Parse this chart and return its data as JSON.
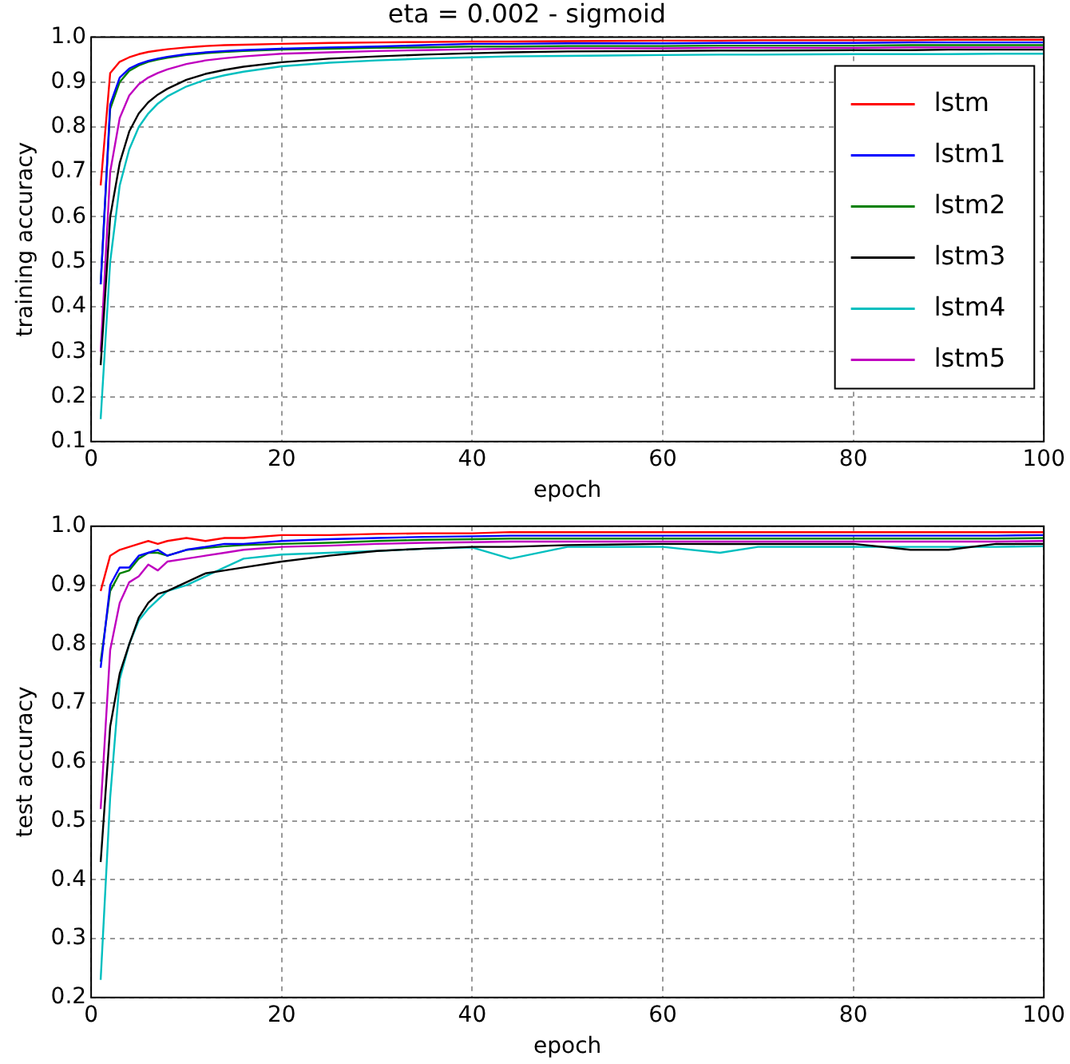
{
  "chart_data": [
    {
      "type": "line",
      "title": "eta = 0.002 - sigmoid",
      "xlabel": "epoch",
      "ylabel": "training accuracy",
      "x": [
        1,
        2,
        3,
        4,
        5,
        6,
        7,
        8,
        10,
        12,
        14,
        16,
        20,
        25,
        30,
        35,
        40,
        44,
        50,
        60,
        66,
        70,
        80,
        86,
        90,
        95,
        100
      ],
      "xlim": [
        0,
        100
      ],
      "xticks": [
        0,
        20,
        40,
        60,
        80,
        100
      ],
      "ylim": [
        0.1,
        1.0
      ],
      "yticks": [
        0.1,
        0.2,
        0.3,
        0.4,
        0.5,
        0.6,
        0.7,
        0.8,
        0.9,
        {
          "value": 1.0,
          "label": "1.0"
        }
      ],
      "grid": true,
      "legend": "top right",
      "marker": "none",
      "line_style": "solid",
      "series": [
        {
          "name": "lstm",
          "color": "#ff0000",
          "values": [
            0.67,
            0.92,
            0.945,
            0.955,
            0.962,
            0.967,
            0.97,
            0.973,
            0.977,
            0.98,
            0.982,
            0.983,
            0.985,
            0.987,
            0.988,
            0.989,
            0.99,
            0.99,
            0.991,
            0.992,
            0.992,
            0.993,
            0.993,
            0.993,
            0.994,
            0.994,
            0.994
          ]
        },
        {
          "name": "lstm1",
          "color": "#0000ff",
          "values": [
            0.45,
            0.85,
            0.91,
            0.93,
            0.94,
            0.947,
            0.952,
            0.956,
            0.962,
            0.966,
            0.969,
            0.971,
            0.974,
            0.977,
            0.979,
            0.982,
            0.985,
            0.985,
            0.986,
            0.986,
            0.987,
            0.987,
            0.987,
            0.988,
            0.988,
            0.988,
            0.988
          ]
        },
        {
          "name": "lstm2",
          "color": "#008000",
          "values": [
            0.45,
            0.84,
            0.9,
            0.925,
            0.937,
            0.945,
            0.95,
            0.954,
            0.96,
            0.964,
            0.967,
            0.969,
            0.972,
            0.974,
            0.976,
            0.977,
            0.979,
            0.979,
            0.98,
            0.98,
            0.981,
            0.981,
            0.981,
            0.982,
            0.982,
            0.982,
            0.982
          ]
        },
        {
          "name": "lstm3",
          "color": "#000000",
          "values": [
            0.27,
            0.6,
            0.72,
            0.79,
            0.83,
            0.855,
            0.872,
            0.885,
            0.905,
            0.918,
            0.927,
            0.934,
            0.944,
            0.952,
            0.957,
            0.961,
            0.964,
            0.966,
            0.968,
            0.969,
            0.97,
            0.97,
            0.971,
            0.971,
            0.972,
            0.972,
            0.972
          ]
        },
        {
          "name": "lstm4",
          "color": "#00bfbf",
          "values": [
            0.15,
            0.5,
            0.67,
            0.75,
            0.8,
            0.83,
            0.852,
            0.868,
            0.89,
            0.905,
            0.915,
            0.923,
            0.935,
            0.943,
            0.948,
            0.952,
            0.955,
            0.957,
            0.958,
            0.96,
            0.961,
            0.961,
            0.962,
            0.962,
            0.962,
            0.963,
            0.963
          ]
        },
        {
          "name": "lstm5",
          "color": "#bf00bf",
          "values": [
            0.3,
            0.7,
            0.82,
            0.87,
            0.895,
            0.91,
            0.92,
            0.928,
            0.94,
            0.948,
            0.953,
            0.957,
            0.963,
            0.966,
            0.969,
            0.971,
            0.973,
            0.974,
            0.975,
            0.975,
            0.976,
            0.976,
            0.976,
            0.977,
            0.977,
            0.977,
            0.977
          ]
        }
      ]
    },
    {
      "type": "line",
      "xlabel": "epoch",
      "ylabel": "test accuracy",
      "x": [
        1,
        2,
        3,
        4,
        5,
        6,
        7,
        8,
        10,
        12,
        14,
        16,
        20,
        25,
        30,
        35,
        40,
        44,
        50,
        60,
        66,
        70,
        80,
        86,
        90,
        95,
        100
      ],
      "xlim": [
        0,
        100
      ],
      "xticks": [
        0,
        20,
        40,
        60,
        80,
        100
      ],
      "ylim": [
        0.2,
        1.0
      ],
      "yticks": [
        0.2,
        0.3,
        0.4,
        0.5,
        0.6,
        0.7,
        0.8,
        0.9,
        {
          "value": 1.0,
          "label": "1.0"
        }
      ],
      "grid": true,
      "marker": "none",
      "line_style": "solid",
      "series": [
        {
          "color": "#ff0000",
          "values": [
            0.89,
            0.95,
            0.96,
            0.965,
            0.97,
            0.975,
            0.97,
            0.975,
            0.98,
            0.975,
            0.98,
            0.98,
            0.985,
            0.985,
            0.987,
            0.988,
            0.988,
            0.99,
            0.99,
            0.99,
            0.99,
            0.99,
            0.99,
            0.99,
            0.99,
            0.99,
            0.99
          ]
        },
        {
          "color": "#0000ff",
          "values": [
            0.76,
            0.9,
            0.93,
            0.93,
            0.95,
            0.955,
            0.96,
            0.95,
            0.96,
            0.965,
            0.97,
            0.97,
            0.975,
            0.978,
            0.98,
            0.982,
            0.983,
            0.984,
            0.984,
            0.984,
            0.984,
            0.984,
            0.984,
            0.984,
            0.984,
            0.984,
            0.985
          ]
        },
        {
          "color": "#008000",
          "values": [
            0.77,
            0.89,
            0.92,
            0.925,
            0.945,
            0.955,
            0.955,
            0.95,
            0.96,
            0.963,
            0.966,
            0.968,
            0.97,
            0.972,
            0.975,
            0.977,
            0.978,
            0.979,
            0.979,
            0.979,
            0.979,
            0.979,
            0.979,
            0.979,
            0.979,
            0.979,
            0.98
          ]
        },
        {
          "color": "#000000",
          "values": [
            0.43,
            0.66,
            0.75,
            0.8,
            0.845,
            0.87,
            0.885,
            0.89,
            0.905,
            0.92,
            0.925,
            0.93,
            0.94,
            0.95,
            0.958,
            0.962,
            0.965,
            0.965,
            0.968,
            0.97,
            0.97,
            0.97,
            0.97,
            0.96,
            0.96,
            0.97,
            0.97
          ]
        },
        {
          "color": "#00bfbf",
          "values": [
            0.23,
            0.54,
            0.74,
            0.8,
            0.84,
            0.86,
            0.875,
            0.89,
            0.9,
            0.915,
            0.93,
            0.945,
            0.952,
            0.955,
            0.958,
            0.962,
            0.964,
            0.945,
            0.965,
            0.965,
            0.955,
            0.965,
            0.965,
            0.965,
            0.965,
            0.965,
            0.966
          ]
        },
        {
          "color": "#bf00bf",
          "values": [
            0.52,
            0.79,
            0.87,
            0.905,
            0.915,
            0.935,
            0.925,
            0.94,
            0.945,
            0.95,
            0.955,
            0.96,
            0.965,
            0.967,
            0.97,
            0.972,
            0.973,
            0.974,
            0.974,
            0.974,
            0.974,
            0.974,
            0.974,
            0.974,
            0.974,
            0.974,
            0.975
          ]
        }
      ]
    }
  ]
}
